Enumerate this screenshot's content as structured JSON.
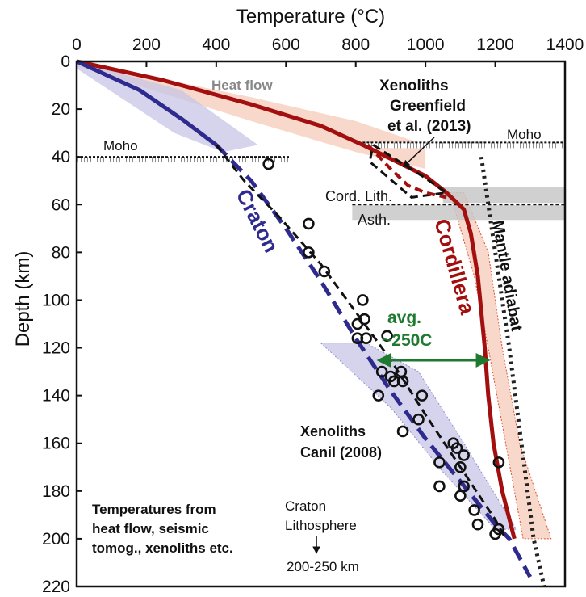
{
  "chart_data": {
    "type": "line",
    "title": "",
    "xlabel": "Temperature (°C)",
    "ylabel": "Depth (km)",
    "xlim": [
      0,
      1400
    ],
    "ylim": [
      0,
      220
    ],
    "x_axis_position": "top",
    "y_inverted": true,
    "xticks": [
      "0",
      "200",
      "400",
      "600",
      "800",
      "1000",
      "1200",
      "1400"
    ],
    "yticks": [
      "0",
      "20",
      "40",
      "60",
      "80",
      "100",
      "120",
      "140",
      "160",
      "180",
      "200",
      "220"
    ],
    "colors": {
      "cordillera": "#a30f0f",
      "cordillera_band": "#f6cbb8",
      "craton": "#2e2a8e",
      "craton_band": "#c7c5e6",
      "adiabat": "#222222",
      "arrow": "#1f7a30",
      "lith_band": "#c8c8c8"
    },
    "series": [
      {
        "name": "Cordillera",
        "style": "solid",
        "points": [
          [
            0,
            0
          ],
          [
            250,
            8
          ],
          [
            500,
            18
          ],
          [
            700,
            27
          ],
          [
            820,
            35
          ],
          [
            1000,
            48
          ],
          [
            1060,
            55
          ],
          [
            1110,
            62
          ],
          [
            1130,
            72
          ],
          [
            1150,
            90
          ],
          [
            1160,
            105
          ],
          [
            1170,
            120
          ],
          [
            1180,
            140
          ],
          [
            1195,
            160
          ],
          [
            1220,
            180
          ],
          [
            1255,
            200
          ]
        ]
      },
      {
        "name": "Craton",
        "style": "solid-dashed",
        "points": [
          [
            0,
            0
          ],
          [
            180,
            12
          ],
          [
            300,
            24
          ],
          [
            400,
            35
          ],
          [
            500,
            50
          ],
          [
            600,
            70
          ],
          [
            700,
            92
          ],
          [
            800,
            116
          ],
          [
            900,
            138
          ],
          [
            1000,
            158
          ],
          [
            1100,
            176
          ],
          [
            1200,
            194
          ],
          [
            1240,
            200
          ],
          [
            1300,
            216
          ]
        ]
      },
      {
        "name": "Mantle adiabat",
        "style": "dotted",
        "points": [
          [
            1160,
            40
          ],
          [
            1200,
            80
          ],
          [
            1240,
            120
          ],
          [
            1275,
            160
          ],
          [
            1310,
            200
          ],
          [
            1340,
            220
          ]
        ]
      }
    ],
    "geotherm_dashed": [
      {
        "points": [
          [
            400,
            35
          ],
          [
            480,
            50
          ],
          [
            580,
            65
          ],
          [
            700,
            85
          ],
          [
            800,
            105
          ],
          [
            900,
            125
          ],
          [
            1000,
            148
          ],
          [
            1100,
            170
          ],
          [
            1200,
            192
          ],
          [
            1230,
            200
          ]
        ]
      },
      {
        "points": [
          [
            850,
            35
          ],
          [
            990,
            48
          ],
          [
            1060,
            55
          ],
          [
            960,
            57
          ],
          [
            840,
            42
          ],
          [
            850,
            35
          ]
        ]
      }
    ],
    "xenoliths_greenfield_segment": [
      [
        835,
        35
      ],
      [
        900,
        45
      ],
      [
        950,
        52
      ],
      [
        1000,
        55
      ],
      [
        1060,
        57
      ]
    ],
    "bands": [
      {
        "name": "Heat flow (Cordillera)",
        "upper": [
          [
            0,
            0
          ],
          [
            500,
            15
          ],
          [
            800,
            25
          ],
          [
            1000,
            35
          ]
        ],
        "lower": [
          [
            1000,
            45
          ],
          [
            800,
            38
          ],
          [
            500,
            25
          ],
          [
            0,
            2
          ]
        ]
      },
      {
        "name": "Heat flow (Craton)",
        "upper": [
          [
            0,
            0
          ],
          [
            300,
            12
          ],
          [
            520,
            35
          ]
        ],
        "lower": [
          [
            420,
            38
          ],
          [
            280,
            30
          ],
          [
            0,
            3
          ]
        ]
      },
      {
        "name": "Cordillera range",
        "upper": [
          [
            1070,
            55
          ],
          [
            1140,
            90
          ],
          [
            1180,
            120
          ],
          [
            1230,
            160
          ],
          [
            1280,
            200
          ]
        ],
        "lower": [
          [
            1360,
            200
          ],
          [
            1270,
            160
          ],
          [
            1220,
            120
          ],
          [
            1180,
            80
          ],
          [
            1110,
            55
          ]
        ]
      },
      {
        "name": "Craton range",
        "upper": [
          [
            700,
            118
          ],
          [
            900,
            145
          ],
          [
            1050,
            172
          ],
          [
            1200,
            196
          ]
        ],
        "lower": [
          [
            1260,
            196
          ],
          [
            1110,
            160
          ],
          [
            980,
            130
          ],
          [
            830,
            118
          ]
        ]
      }
    ],
    "xenolith_points": [
      [
        550,
        43
      ],
      [
        665,
        68
      ],
      [
        665,
        80
      ],
      [
        710,
        88
      ],
      [
        820,
        100
      ],
      [
        805,
        110
      ],
      [
        825,
        108
      ],
      [
        805,
        116
      ],
      [
        830,
        116
      ],
      [
        890,
        115
      ],
      [
        875,
        130
      ],
      [
        900,
        132
      ],
      [
        910,
        134
      ],
      [
        930,
        130
      ],
      [
        935,
        134
      ],
      [
        990,
        140
      ],
      [
        865,
        140
      ],
      [
        980,
        150
      ],
      [
        1080,
        160
      ],
      [
        1090,
        162
      ],
      [
        1110,
        165
      ],
      [
        935,
        155
      ],
      [
        1040,
        168
      ],
      [
        1100,
        170
      ],
      [
        1210,
        168
      ],
      [
        1110,
        178
      ],
      [
        1040,
        178
      ],
      [
        1100,
        182
      ],
      [
        1140,
        188
      ],
      [
        1150,
        194
      ],
      [
        1210,
        196
      ],
      [
        1200,
        198
      ]
    ],
    "reference_lines": [
      {
        "label": "Moho",
        "depth": 36,
        "side": "right"
      },
      {
        "label": "Moho",
        "depth": 42,
        "side": "left"
      },
      {
        "label": "Cord. Lith.",
        "depth": 60
      },
      {
        "label": "Asth.",
        "depth": 60
      }
    ],
    "annotations": {
      "heat_flow": "Heat flow",
      "xenoliths_greenfield_1": "Xenoliths",
      "xenoliths_greenfield_2": "Greenfield",
      "xenoliths_greenfield_3": "et al. (2013)",
      "moho_right": "Moho",
      "moho_left": "Moho",
      "cord_lith": "Cord. Lith.",
      "asth": "Asth.",
      "cordillera": "Cordillera",
      "craton": "Craton",
      "mantle_adiabat": "Mantle adiabat",
      "avg_1": "avg.",
      "avg_2": "~250C",
      "xenoliths_canil_1": "Xenoliths",
      "xenoliths_canil_2": "Canil (2008)",
      "temps_1": "Temperatures from",
      "temps_2": "heat flow, seismic",
      "temps_3": "tomog., xenoliths etc.",
      "craton_lith_1": "Craton",
      "craton_lith_2": "Lithosphere",
      "craton_lith_3": "200-250 km"
    }
  }
}
